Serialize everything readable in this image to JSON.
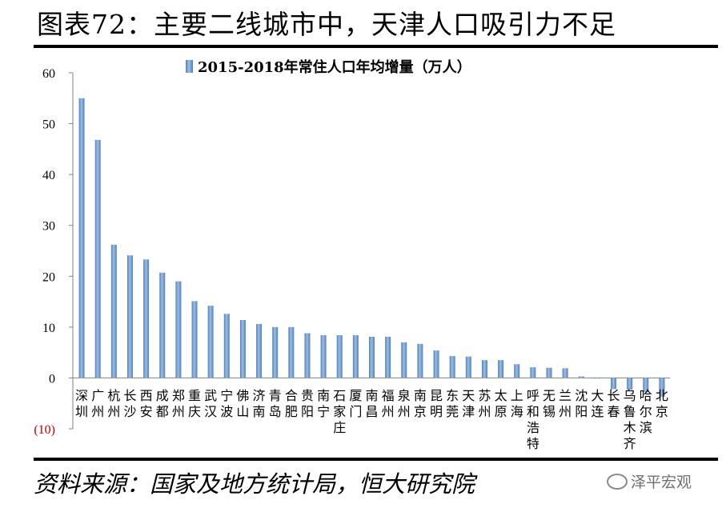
{
  "figure": {
    "title": "图表72：主要二线城市中，天津人口吸引力不足",
    "source": "资料来源：国家及地方统计局，恒大研究院",
    "watermark": "泽平宏观"
  },
  "colors": {
    "bar": "#4f81bd",
    "bar_light": "#9dbde6",
    "negative_tick": "#c00000",
    "axis": "#808080"
  },
  "icons": {
    "watermark": "wechat-icon"
  },
  "chart_data": {
    "type": "bar",
    "legend": {
      "label": "2015-2018年常住人口年均增量（万人）",
      "position": "top"
    },
    "ylim": [
      -10,
      60
    ],
    "yticks": [
      {
        "value": 60,
        "label": "60"
      },
      {
        "value": 50,
        "label": "50"
      },
      {
        "value": 40,
        "label": "40"
      },
      {
        "value": 30,
        "label": "30"
      },
      {
        "value": 20,
        "label": "20"
      },
      {
        "value": 10,
        "label": "10"
      },
      {
        "value": 0,
        "label": "0"
      },
      {
        "value": -10,
        "label": "(10)"
      }
    ],
    "grid": false,
    "categories": [
      "深圳",
      "广州",
      "杭州",
      "长沙",
      "西安",
      "成都",
      "郑州",
      "重庆",
      "武汉",
      "宁波",
      "佛山",
      "济南",
      "青岛",
      "合肥",
      "贵阳",
      "南宁",
      "石家庄",
      "厦门",
      "南昌",
      "福州",
      "泉州",
      "南京",
      "昆明",
      "东莞",
      "天津",
      "苏州",
      "太原",
      "上海",
      "呼和浩特",
      "无锡",
      "兰州",
      "沈阳",
      "大连",
      "长春",
      "乌鲁木齐",
      "哈尔滨",
      "北京"
    ],
    "series": [
      {
        "name": "2015-2018年常住人口年均增量（万人）",
        "values": [
          55.0,
          46.8,
          26.2,
          24.1,
          23.3,
          20.7,
          19.0,
          15.1,
          14.2,
          12.6,
          11.4,
          10.6,
          10.0,
          10.0,
          8.8,
          8.4,
          8.4,
          8.4,
          8.1,
          8.1,
          7.0,
          6.7,
          5.4,
          4.3,
          4.2,
          3.5,
          3.5,
          2.7,
          2.1,
          2.0,
          1.9,
          0.3,
          -0.1,
          -2.2,
          -2.3,
          -2.8,
          -3.7
        ]
      }
    ]
  }
}
